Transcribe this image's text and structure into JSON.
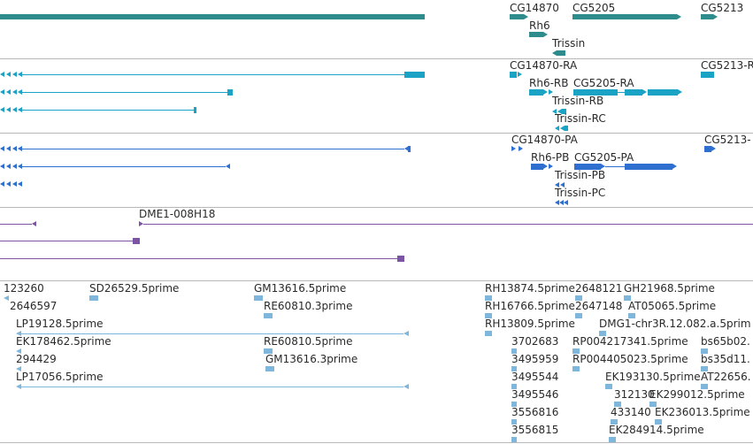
{
  "colors": {
    "gene": "#2e8c8c",
    "transcript": "#1aa3c4",
    "cds": "#2f6fd0",
    "clone": "#7b55a3",
    "est": "#7fb7dc",
    "divider": "#b8b8b8"
  },
  "tracks": {
    "genes": {
      "labels": [
        "CG14870",
        "CG5205",
        "CG5213",
        "Rh6",
        "Trissin"
      ]
    },
    "transcripts": {
      "labels": [
        "CG14870-RA",
        "CG5213-R",
        "Rh6-RB",
        "CG5205-RA",
        "Trissin-RB",
        "Trissin-RC"
      ]
    },
    "cds": {
      "labels": [
        "CG14870-PA",
        "CG5213-",
        "Rh6-PB",
        "CG5205-PA",
        "Trissin-PB",
        "Trissin-PC"
      ]
    },
    "clones": {
      "labels": [
        "DME1-008H18"
      ]
    },
    "ests": {
      "labels": [
        "123260",
        "SD26529.5prime",
        "GM13616.5prime",
        "RH13874.5prime",
        "2648121",
        "GH21968.5prime",
        "2646597",
        "RE60810.3prime",
        "RH16766.5prime",
        "2647148",
        "AT05065.5prime",
        "LP19128.5prime",
        "RH13809.5prime",
        "DMG1-chr3R.12.082.a.5prim",
        "EK178462.5prime",
        "RE60810.5prime",
        "3702683",
        "RP004217341.5prime",
        "bs65b02.",
        "294429",
        "GM13616.3prime",
        "3495959",
        "RP004405023.5prime",
        "bs35d11.",
        "LP17056.5prime",
        "3495544",
        "EK193130.5prime",
        "AT22656.",
        "3495546",
        "312130",
        "EK299012.5prime",
        "3556816",
        "433140",
        "EK236013.5prime",
        "3556815",
        "EK284914.5prime"
      ]
    }
  }
}
